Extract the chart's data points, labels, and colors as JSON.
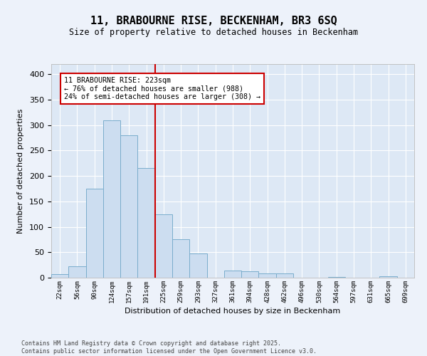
{
  "title_line1": "11, BRABOURNE RISE, BECKENHAM, BR3 6SQ",
  "title_line2": "Size of property relative to detached houses in Beckenham",
  "xlabel": "Distribution of detached houses by size in Beckenham",
  "ylabel": "Number of detached properties",
  "bar_color": "#ccddf0",
  "bar_edge_color": "#7aadcc",
  "bg_color": "#dde8f5",
  "fig_bg_color": "#edf2fa",
  "grid_color": "#ffffff",
  "bins": [
    "22sqm",
    "56sqm",
    "90sqm",
    "124sqm",
    "157sqm",
    "191sqm",
    "225sqm",
    "259sqm",
    "293sqm",
    "327sqm",
    "361sqm",
    "394sqm",
    "428sqm",
    "462sqm",
    "496sqm",
    "530sqm",
    "564sqm",
    "597sqm",
    "631sqm",
    "665sqm",
    "699sqm"
  ],
  "values": [
    7,
    22,
    175,
    310,
    280,
    215,
    125,
    75,
    48,
    0,
    14,
    12,
    8,
    8,
    0,
    0,
    2,
    0,
    0,
    3,
    0
  ],
  "vline_index": 5.5,
  "vline_color": "#cc0000",
  "annotation_text": "11 BRABOURNE RISE: 223sqm\n← 76% of detached houses are smaller (988)\n24% of semi-detached houses are larger (308) →",
  "annotation_edge_color": "#cc0000",
  "ylim_max": 420,
  "yticks": [
    0,
    50,
    100,
    150,
    200,
    250,
    300,
    350,
    400
  ],
  "footer": "Contains HM Land Registry data © Crown copyright and database right 2025.\nContains public sector information licensed under the Open Government Licence v3.0."
}
